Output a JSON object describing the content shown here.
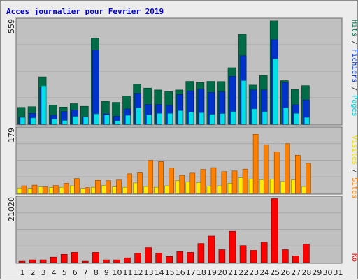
{
  "title": "Acces journalier pour Fevrier 2019",
  "colors": {
    "hits": "#006c47",
    "files": "#0033cc",
    "pages": "#00e0e8",
    "visits": "#ffee00",
    "sites": "#ff8000",
    "kbytes": "#ff0000",
    "panel_bg": "#c0c0c0",
    "grid": "#a8a8a8",
    "weekday_label": "#000000",
    "weekend_label": "#007f3f"
  },
  "chart_data": [
    {
      "type": "bar",
      "panel": "hits-files-pages",
      "ymax_label": "559",
      "ylim": [
        0,
        559
      ],
      "categories": [
        "1",
        "2",
        "3",
        "4",
        "5",
        "6",
        "7",
        "8",
        "9",
        "10",
        "11",
        "12",
        "13",
        "14",
        "15",
        "16",
        "17",
        "18",
        "19",
        "20",
        "21",
        "22",
        "23",
        "24",
        "25",
        "26",
        "27",
        "28",
        "29",
        "30",
        "31"
      ],
      "series": [
        {
          "name": "Hits",
          "values": [
            90,
            94,
            253,
            103,
            92,
            110,
            96,
            459,
            123,
            117,
            150,
            214,
            193,
            183,
            175,
            183,
            229,
            223,
            229,
            228,
            302,
            481,
            209,
            261,
            552,
            233,
            185,
            206,
            0,
            0,
            0
          ]
        },
        {
          "name": "Fichiers",
          "values": [
            38,
            58,
            196,
            49,
            68,
            76,
            40,
            396,
            56,
            43,
            82,
            165,
            106,
            106,
            101,
            159,
            178,
            188,
            170,
            173,
            256,
            366,
            183,
            183,
            451,
            222,
            104,
            130,
            0,
            0,
            0
          ]
        },
        {
          "name": "Pages",
          "values": [
            36,
            34,
            205,
            28,
            20,
            42,
            38,
            55,
            50,
            18,
            48,
            88,
            50,
            58,
            58,
            73,
            65,
            62,
            53,
            57,
            68,
            233,
            82,
            68,
            349,
            88,
            58,
            36,
            0,
            0,
            0
          ]
        }
      ],
      "legend": [
        "Pages",
        "Fichiers",
        "Hits"
      ]
    },
    {
      "type": "bar",
      "panel": "visits-sites",
      "ymax_label": "179",
      "ylim": [
        0,
        179
      ],
      "categories": [
        "1",
        "2",
        "3",
        "4",
        "5",
        "6",
        "7",
        "8",
        "9",
        "10",
        "11",
        "12",
        "13",
        "14",
        "15",
        "16",
        "17",
        "18",
        "19",
        "20",
        "21",
        "22",
        "23",
        "24",
        "25",
        "26",
        "27",
        "28",
        "29",
        "30",
        "31"
      ],
      "series": [
        {
          "name": "Visites",
          "values": [
            15,
            14,
            18,
            16,
            17,
            21,
            14,
            17,
            22,
            18,
            17,
            29,
            19,
            17,
            21,
            35,
            32,
            30,
            20,
            21,
            28,
            43,
            40,
            38,
            39,
            33,
            37,
            19,
            0,
            0,
            0
          ]
        },
        {
          "name": "Sites",
          "values": [
            21,
            23,
            18,
            22,
            28,
            41,
            16,
            36,
            35,
            37,
            54,
            57,
            91,
            88,
            70,
            50,
            56,
            66,
            71,
            60,
            62,
            67,
            163,
            134,
            115,
            137,
            105,
            83,
            0,
            0,
            0
          ]
        }
      ],
      "legend": [
        "Sites",
        "Visites"
      ]
    },
    {
      "type": "bar",
      "panel": "kbytes",
      "ymax_label": "21020",
      "ylim": [
        0,
        21020
      ],
      "categories": [
        "1",
        "2",
        "3",
        "4",
        "5",
        "6",
        "7",
        "8",
        "9",
        "10",
        "11",
        "12",
        "13",
        "14",
        "15",
        "16",
        "17",
        "18",
        "19",
        "20",
        "21",
        "22",
        "23",
        "24",
        "25",
        "26",
        "27",
        "28",
        "29",
        "30",
        "31"
      ],
      "series": [
        {
          "name": "Ko",
          "values": [
            440,
            880,
            880,
            1760,
            2640,
            3300,
            440,
            3300,
            880,
            880,
            1540,
            3080,
            4840,
            3080,
            1980,
            3520,
            3300,
            6160,
            8580,
            4180,
            10120,
            5500,
            3960,
            6600,
            20680,
            4180,
            2200,
            5940,
            0,
            0,
            0
          ]
        }
      ],
      "legend": [
        "Ko"
      ]
    }
  ],
  "x_labels": [
    "1",
    "2",
    "3",
    "4",
    "5",
    "6",
    "7",
    "8",
    "9",
    "10",
    "11",
    "12",
    "13",
    "14",
    "15",
    "16",
    "17",
    "18",
    "19",
    "20",
    "21",
    "22",
    "23",
    "24",
    "25",
    "26",
    "27",
    "28",
    "29",
    "30",
    "31"
  ],
  "weekend_days": [
    "2",
    "3",
    "9",
    "10",
    "16",
    "17",
    "23",
    "24",
    "30",
    "31"
  ]
}
